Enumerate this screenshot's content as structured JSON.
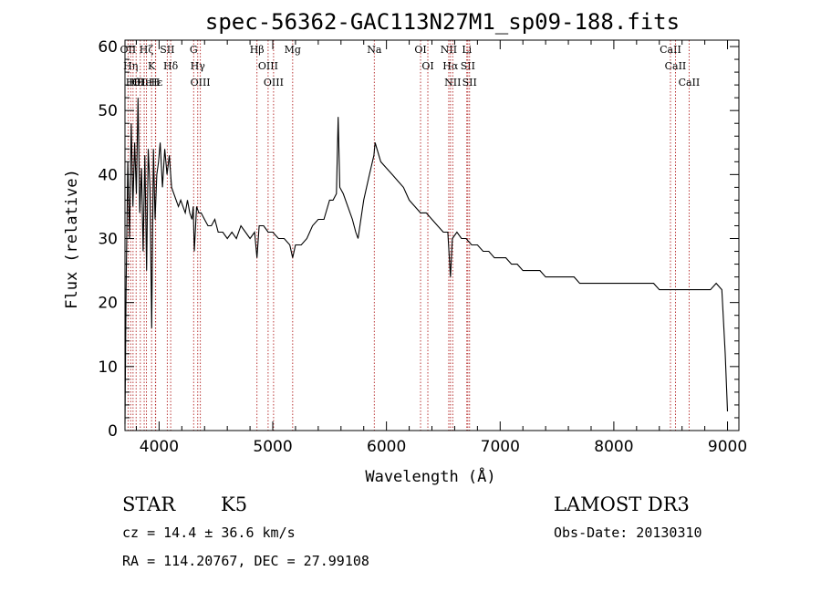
{
  "chart_data": {
    "type": "line",
    "title": "spec-56362-GAC113N27M1_sp09-188.fits",
    "xlabel": "Wavelength (Å)",
    "ylabel": "Flux (relative)",
    "xlim": [
      3700,
      9100
    ],
    "ylim": [
      0,
      61
    ],
    "xticks": [
      4000,
      5000,
      6000,
      7000,
      8000,
      9000
    ],
    "yticks": [
      0,
      10,
      20,
      30,
      40,
      50,
      60
    ],
    "grid": false,
    "series": [
      {
        "x": [
          3700,
          3710,
          3725,
          3740,
          3755,
          3770,
          3785,
          3800,
          3815,
          3830,
          3845,
          3860,
          3875,
          3890,
          3905,
          3920,
          3935,
          3950,
          3965,
          3980,
          3995,
          4010,
          4030,
          4050,
          4070,
          4090,
          4110,
          4130,
          4150,
          4170,
          4190,
          4210,
          4230,
          4250,
          4270,
          4290,
          4300,
          4310,
          4330,
          4350,
          4370,
          4400,
          4430,
          4460,
          4490,
          4520,
          4560,
          4600,
          4640,
          4680,
          4720,
          4760,
          4800,
          4840,
          4861,
          4880,
          4920,
          4960,
          5000,
          5050,
          5100,
          5150,
          5175,
          5200,
          5250,
          5300,
          5350,
          5400,
          5450,
          5500,
          5530,
          5560,
          5575,
          5590,
          5620,
          5660,
          5700,
          5730,
          5750,
          5800,
          5850,
          5890,
          5900,
          5950,
          6000,
          6050,
          6100,
          6150,
          6200,
          6250,
          6300,
          6350,
          6400,
          6450,
          6500,
          6540,
          6563,
          6580,
          6620,
          6660,
          6700,
          6750,
          6800,
          6850,
          6900,
          6950,
          7000,
          7050,
          7100,
          7150,
          7200,
          7250,
          7300,
          7350,
          7400,
          7450,
          7500,
          7550,
          7600,
          7650,
          7700,
          7750,
          7800,
          7850,
          7900,
          7950,
          8000,
          8050,
          8100,
          8150,
          8200,
          8250,
          8300,
          8350,
          8400,
          8450,
          8500,
          8550,
          8600,
          8650,
          8700,
          8750,
          8800,
          8850,
          8900,
          8950,
          8980,
          9000
        ],
        "y": [
          1,
          22,
          42,
          30,
          48,
          35,
          45,
          37,
          52,
          34,
          41,
          28,
          43,
          25,
          44,
          38,
          16,
          44,
          33,
          40,
          42,
          45,
          38,
          44,
          40,
          43,
          38,
          37,
          36,
          35,
          36,
          35,
          34,
          36,
          34,
          33,
          35,
          28,
          35,
          34,
          34,
          33,
          32,
          32,
          33,
          31,
          31,
          30,
          31,
          30,
          32,
          31,
          30,
          31,
          27,
          32,
          32,
          31,
          31,
          30,
          30,
          29,
          27,
          29,
          29,
          30,
          32,
          33,
          33,
          36,
          36,
          37,
          49,
          38,
          37,
          35,
          33,
          31,
          30,
          36,
          40,
          43,
          45,
          42,
          41,
          40,
          39,
          38,
          36,
          35,
          34,
          34,
          33,
          32,
          31,
          31,
          24,
          30,
          31,
          30,
          30,
          29,
          29,
          28,
          28,
          27,
          27,
          27,
          26,
          26,
          25,
          25,
          25,
          25,
          24,
          24,
          24,
          24,
          24,
          24,
          23,
          23,
          23,
          23,
          23,
          23,
          23,
          23,
          23,
          23,
          23,
          23,
          23,
          23,
          22,
          22,
          22,
          22,
          22,
          22,
          22,
          22,
          22,
          22,
          23,
          22,
          12,
          3
        ]
      }
    ],
    "lines": [
      {
        "w": 3727,
        "l": "OII"
      },
      {
        "w": 3750,
        "l": "Hη"
      },
      {
        "w": 3771,
        "l": "Hθ"
      },
      {
        "w": 3798,
        "l": "Hθ"
      },
      {
        "w": 3835,
        "l": "OII"
      },
      {
        "w": 3869,
        "l": "He"
      },
      {
        "w": 3889,
        "l": "Hζ"
      },
      {
        "w": 3934,
        "l": "K"
      },
      {
        "w": 3968,
        "l": "H"
      },
      {
        "w": 3970,
        "l": "Hε"
      },
      {
        "w": 4072,
        "l": "SII"
      },
      {
        "w": 4102,
        "l": "Hδ"
      },
      {
        "w": 4304,
        "l": "G"
      },
      {
        "w": 4340,
        "l": "Hγ"
      },
      {
        "w": 4363,
        "l": "OIII"
      },
      {
        "w": 4861,
        "l": "Hβ"
      },
      {
        "w": 4959,
        "l": "OIII"
      },
      {
        "w": 5007,
        "l": "OIII"
      },
      {
        "w": 5175,
        "l": "Mg"
      },
      {
        "w": 5893,
        "l": "Na"
      },
      {
        "w": 6300,
        "l": "OI"
      },
      {
        "w": 6364,
        "l": "OI"
      },
      {
        "w": 6548,
        "l": "NII"
      },
      {
        "w": 6563,
        "l": "Hα"
      },
      {
        "w": 6583,
        "l": "NII"
      },
      {
        "w": 6707,
        "l": "Li"
      },
      {
        "w": 6716,
        "l": "SII"
      },
      {
        "w": 6731,
        "l": "SII"
      },
      {
        "w": 8498,
        "l": "CaII"
      },
      {
        "w": 8542,
        "l": "CaII"
      },
      {
        "w": 8662,
        "l": "CaII"
      }
    ]
  },
  "info": {
    "class": "STAR",
    "subclass": "K5",
    "survey": "LAMOST DR3",
    "cz": "cz = 14.4 ± 36.6 km/s",
    "obsdate": "Obs-Date: 20130310",
    "radec": "RA = 114.20767, DEC =  27.99108"
  }
}
